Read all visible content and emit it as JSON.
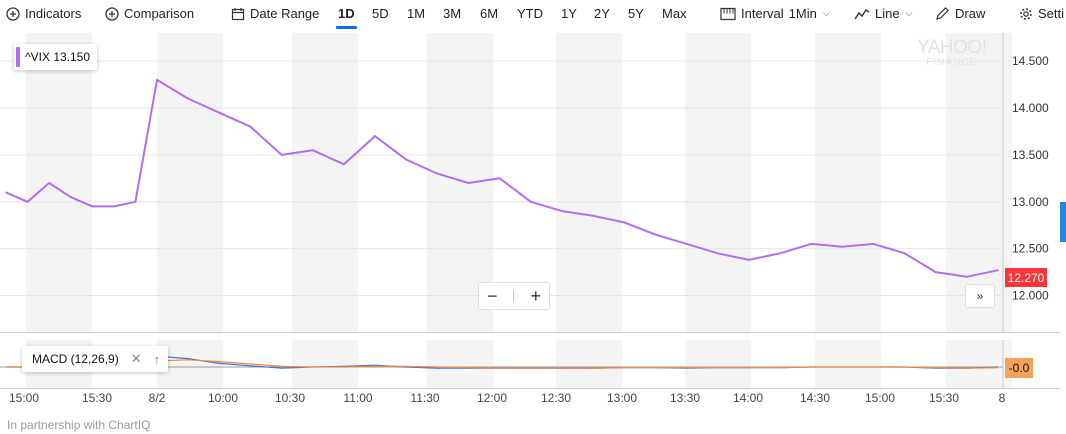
{
  "toolbar": {
    "indicators": "Indicators",
    "comparison": "Comparison",
    "date_range": "Date Range",
    "ranges": [
      "1D",
      "5D",
      "1M",
      "3M",
      "6M",
      "YTD",
      "1Y",
      "2Y",
      "5Y",
      "Max"
    ],
    "active_range": "1D",
    "interval_label": "Interval",
    "interval_value": "1Min",
    "chart_type": "Line",
    "draw": "Draw",
    "settings": "Setti"
  },
  "watermark": {
    "line1": "YAHOO!",
    "line2": "FINANCE"
  },
  "legend": {
    "symbol": "^VIX",
    "value": "13.150"
  },
  "current_price_label": "12.270",
  "macd": {
    "label": "MACD (12,26,9)",
    "value_label": "-0.0"
  },
  "zoom": {
    "minus": "−",
    "plus": "+",
    "forward": "»"
  },
  "credit": "In partnership with ChartIQ",
  "colors": {
    "line": "#b36cf5",
    "price_tag": "#ff333a",
    "macd_tag": "#f6a35a",
    "accent": "#0f69ff"
  },
  "icons": [
    "plus-circle-icon",
    "calendar-icon",
    "interval-icon",
    "line-chart-icon",
    "pencil-icon",
    "gear-icon",
    "close-icon",
    "arrow-up-icon"
  ],
  "chart_data": {
    "type": "line",
    "series": [
      {
        "name": "^VIX"
      }
    ],
    "x_tick_labels": [
      "15:00",
      "15:30",
      "8/2",
      "10:00",
      "10:30",
      "11:00",
      "11:30",
      "12:00",
      "12:30",
      "13:00",
      "13:30",
      "14:00",
      "14:30",
      "15:00",
      "15:30",
      "8"
    ],
    "y_tick_labels": [
      "12.000",
      "12.500",
      "13.000",
      "13.500",
      "14.000",
      "14.500"
    ],
    "ylim": [
      11.6,
      14.8
    ],
    "x": [
      "14:45",
      "15:00",
      "15:15",
      "15:30",
      "15:45",
      "16:00",
      "16:15",
      "9:30",
      "9:32",
      "9:45",
      "10:00",
      "10:15",
      "10:30",
      "10:45",
      "11:00",
      "11:15",
      "11:30",
      "11:45",
      "12:00",
      "12:15",
      "12:30",
      "12:45",
      "13:00",
      "13:15",
      "13:30",
      "13:45",
      "14:00",
      "14:15",
      "14:30",
      "14:45",
      "15:00",
      "15:15",
      "15:30",
      "15:45",
      "16:00"
    ],
    "values": [
      13.1,
      13.0,
      13.2,
      13.05,
      12.95,
      12.95,
      13.0,
      14.3,
      14.1,
      13.95,
      13.8,
      13.5,
      13.55,
      13.4,
      13.7,
      13.45,
      13.3,
      13.2,
      13.25,
      13.0,
      12.9,
      12.85,
      12.78,
      12.65,
      12.55,
      12.45,
      12.38,
      12.45,
      12.55,
      12.52,
      12.55,
      12.45,
      12.25,
      12.2,
      12.27
    ],
    "macd_line_values": [
      0.0,
      0.0,
      0.0,
      0.0,
      0.0,
      0.0,
      0.0,
      0.18,
      0.14,
      0.06,
      0.02,
      -0.02,
      0.0,
      0.01,
      0.03,
      0.0,
      -0.02,
      -0.02,
      -0.02,
      -0.02,
      -0.02,
      -0.02,
      -0.01,
      -0.01,
      -0.02,
      -0.01,
      -0.01,
      -0.01,
      0.0,
      0.0,
      0.0,
      0.0,
      -0.02,
      -0.02,
      0.0
    ],
    "signal_line_values": [
      0.0,
      0.0,
      0.0,
      0.0,
      0.0,
      0.0,
      0.0,
      0.1,
      0.12,
      0.09,
      0.05,
      0.01,
      0.0,
      0.0,
      0.01,
      0.01,
      0.0,
      -0.01,
      -0.02,
      -0.02,
      -0.02,
      -0.02,
      -0.01,
      -0.01,
      -0.01,
      -0.01,
      -0.01,
      -0.01,
      0.0,
      0.0,
      0.0,
      0.0,
      -0.01,
      -0.02,
      -0.01
    ],
    "grid": true
  }
}
